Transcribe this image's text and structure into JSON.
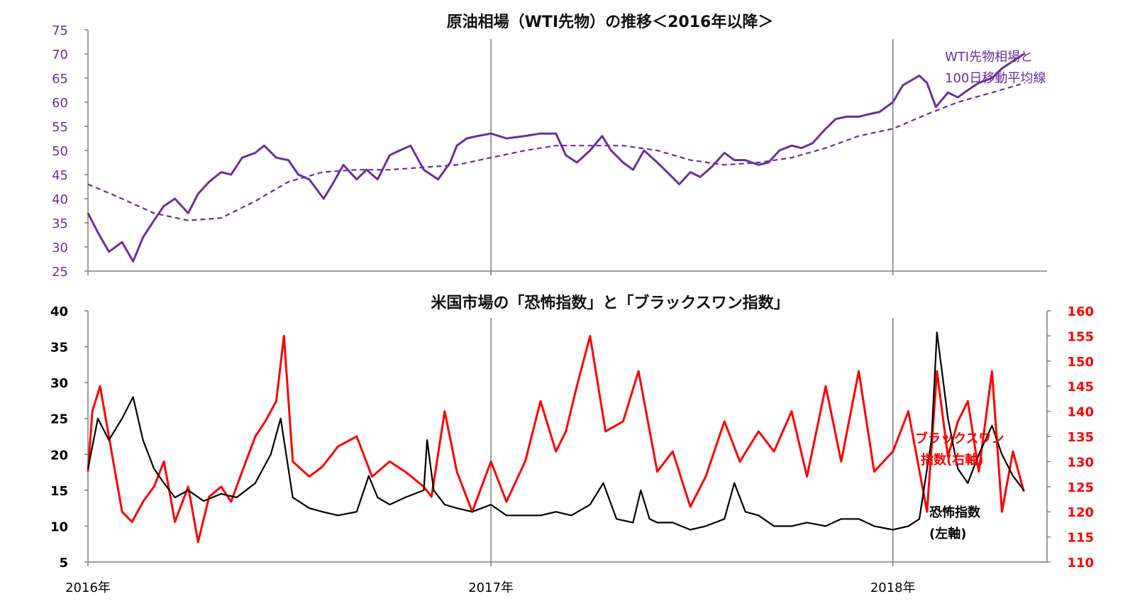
{
  "colors": {
    "wti": "#6B2FA0",
    "vix": "#000000",
    "skew": "#FF0000",
    "axis": "#7f7f7f",
    "grid": "#7f7f7f"
  },
  "chart_data": [
    {
      "type": "line",
      "title": "原油相場（WTI先物）の推移＜2016年以降＞",
      "ylim": [
        25,
        75
      ],
      "yticks": [
        "25",
        "30",
        "35",
        "40",
        "45",
        "50",
        "55",
        "60",
        "65",
        "70",
        "75"
      ],
      "x_range": [
        "2016-01-01",
        "2018-05-01"
      ],
      "legend": {
        "lines": [
          "WTI先物相場と",
          "100日移動平均線"
        ],
        "position": "right"
      },
      "series": [
        {
          "name": "WTI先物相場",
          "style": "solid",
          "x": [
            "2016-01-01",
            "2016-01-10",
            "2016-01-20",
            "2016-02-01",
            "2016-02-11",
            "2016-02-20",
            "2016-03-01",
            "2016-03-10",
            "2016-03-20",
            "2016-04-01",
            "2016-04-10",
            "2016-04-20",
            "2016-05-01",
            "2016-05-10",
            "2016-05-20",
            "2016-06-01",
            "2016-06-09",
            "2016-06-20",
            "2016-07-01",
            "2016-07-10",
            "2016-07-20",
            "2016-08-02",
            "2016-08-10",
            "2016-08-20",
            "2016-09-01",
            "2016-09-10",
            "2016-09-20",
            "2016-10-01",
            "2016-10-10",
            "2016-10-20",
            "2016-11-01",
            "2016-11-14",
            "2016-11-25",
            "2016-12-01",
            "2016-12-10",
            "2016-12-20",
            "2017-01-01",
            "2017-01-15",
            "2017-02-01",
            "2017-02-15",
            "2017-03-01",
            "2017-03-10",
            "2017-03-20",
            "2017-04-01",
            "2017-04-12",
            "2017-04-20",
            "2017-05-01",
            "2017-05-10",
            "2017-05-20",
            "2017-06-01",
            "2017-06-10",
            "2017-06-21",
            "2017-07-01",
            "2017-07-10",
            "2017-07-20",
            "2017-08-01",
            "2017-08-10",
            "2017-08-20",
            "2017-09-01",
            "2017-09-10",
            "2017-09-20",
            "2017-10-01",
            "2017-10-10",
            "2017-10-20",
            "2017-11-01",
            "2017-11-10",
            "2017-11-20",
            "2017-12-01",
            "2017-12-10",
            "2017-12-20",
            "2018-01-01",
            "2018-01-10",
            "2018-01-25",
            "2018-02-01",
            "2018-02-09",
            "2018-02-20",
            "2018-03-01",
            "2018-03-10",
            "2018-03-20",
            "2018-04-01",
            "2018-04-10",
            "2018-04-20",
            "2018-04-30"
          ],
          "y": [
            37.0,
            33.0,
            29.0,
            31.0,
            27.0,
            32.0,
            35.5,
            38.5,
            40.0,
            37.0,
            41.0,
            43.5,
            45.5,
            45.0,
            48.5,
            49.5,
            51.0,
            48.5,
            48.0,
            45.0,
            44.0,
            40.0,
            43.0,
            47.0,
            44.0,
            46.0,
            44.0,
            49.0,
            50.0,
            51.0,
            46.0,
            44.0,
            47.5,
            51.0,
            52.5,
            53.0,
            53.5,
            52.5,
            53.0,
            53.5,
            53.5,
            49.0,
            47.5,
            50.0,
            53.0,
            50.0,
            47.5,
            46.0,
            50.0,
            47.5,
            45.5,
            43.0,
            45.5,
            44.5,
            46.5,
            49.5,
            48.0,
            48.0,
            47.0,
            47.5,
            50.0,
            51.0,
            50.5,
            51.5,
            54.5,
            56.5,
            57.0,
            57.0,
            57.5,
            58.0,
            60.0,
            63.5,
            65.5,
            64.0,
            59.0,
            62.0,
            61.0,
            62.5,
            64.0,
            65.0,
            67.0,
            68.5,
            70.0
          ]
        },
        {
          "name": "100日移動平均線",
          "style": "dashed",
          "x": [
            "2016-01-01",
            "2016-02-01",
            "2016-03-01",
            "2016-04-01",
            "2016-05-01",
            "2016-06-01",
            "2016-07-01",
            "2016-08-01",
            "2016-09-01",
            "2016-10-01",
            "2016-11-01",
            "2016-12-01",
            "2017-01-01",
            "2017-02-01",
            "2017-03-01",
            "2017-04-01",
            "2017-05-01",
            "2017-06-01",
            "2017-07-01",
            "2017-08-01",
            "2017-09-01",
            "2017-10-01",
            "2017-11-01",
            "2017-12-01",
            "2018-01-01",
            "2018-02-01",
            "2018-03-01",
            "2018-04-01",
            "2018-05-01"
          ],
          "y": [
            43.0,
            40.0,
            37.0,
            35.5,
            36.0,
            39.5,
            43.5,
            45.5,
            46.0,
            46.0,
            46.5,
            47.0,
            48.5,
            50.0,
            51.0,
            51.0,
            51.0,
            50.0,
            48.0,
            47.0,
            47.5,
            48.5,
            50.5,
            53.0,
            54.5,
            57.5,
            60.0,
            62.0,
            64.0
          ]
        }
      ]
    },
    {
      "type": "line",
      "title": "米国市場の「恐怖指数」と「ブラックスワン指数」",
      "ylim": [
        5,
        40
      ],
      "y2lim": [
        110,
        160
      ],
      "yticks": [
        "5",
        "10",
        "15",
        "20",
        "25",
        "30",
        "35",
        "40"
      ],
      "y2ticks": [
        "110",
        "115",
        "120",
        "125",
        "130",
        "135",
        "140",
        "145",
        "150",
        "155",
        "160"
      ],
      "xticks": [
        "2016年",
        "2017年",
        "2018年"
      ],
      "x_range": [
        "2016-01-01",
        "2018-05-01"
      ],
      "series": [
        {
          "name": "ブラックスワン指数(右軸)",
          "axis": "right",
          "x": [
            "2016-01-01",
            "2016-01-05",
            "2016-01-12",
            "2016-01-20",
            "2016-02-01",
            "2016-02-10",
            "2016-02-20",
            "2016-03-01",
            "2016-03-10",
            "2016-03-20",
            "2016-04-01",
            "2016-04-10",
            "2016-04-20",
            "2016-05-01",
            "2016-05-10",
            "2016-05-20",
            "2016-06-01",
            "2016-06-10",
            "2016-06-20",
            "2016-06-27",
            "2016-07-05",
            "2016-07-20",
            "2016-08-01",
            "2016-08-15",
            "2016-09-01",
            "2016-09-15",
            "2016-10-01",
            "2016-10-15",
            "2016-11-01",
            "2016-11-08",
            "2016-11-20",
            "2016-12-01",
            "2016-12-15",
            "2017-01-01",
            "2017-01-15",
            "2017-02-01",
            "2017-02-15",
            "2017-03-01",
            "2017-03-10",
            "2017-03-20",
            "2017-04-01",
            "2017-04-15",
            "2017-05-01",
            "2017-05-15",
            "2017-06-01",
            "2017-06-15",
            "2017-07-01",
            "2017-07-15",
            "2017-08-01",
            "2017-08-15",
            "2017-09-01",
            "2017-09-15",
            "2017-10-01",
            "2017-10-15",
            "2017-11-01",
            "2017-11-15",
            "2017-12-01",
            "2017-12-15",
            "2018-01-01",
            "2018-01-15",
            "2018-02-01",
            "2018-02-10",
            "2018-02-20",
            "2018-03-01",
            "2018-03-10",
            "2018-03-20",
            "2018-04-01",
            "2018-04-10",
            "2018-04-20",
            "2018-04-30"
          ],
          "y": [
            128,
            140,
            145,
            135,
            120,
            118,
            122,
            125,
            130,
            118,
            125,
            114,
            123,
            125,
            122,
            128,
            135,
            138,
            142,
            155,
            130,
            127,
            129,
            133,
            135,
            127,
            130,
            128,
            125,
            123,
            140,
            128,
            120,
            130,
            122,
            130,
            142,
            132,
            136,
            145,
            155,
            136,
            138,
            148,
            128,
            132,
            121,
            127,
            138,
            130,
            136,
            132,
            140,
            127,
            145,
            130,
            148,
            128,
            132,
            140,
            120,
            148,
            131,
            138,
            142,
            128,
            148,
            120,
            132,
            124
          ]
        },
        {
          "name": "恐怖指数(左軸)",
          "axis": "left",
          "x": [
            "2016-01-01",
            "2016-01-10",
            "2016-01-20",
            "2016-02-01",
            "2016-02-11",
            "2016-02-20",
            "2016-03-01",
            "2016-03-10",
            "2016-03-20",
            "2016-04-01",
            "2016-04-15",
            "2016-05-01",
            "2016-05-15",
            "2016-06-01",
            "2016-06-15",
            "2016-06-24",
            "2016-07-05",
            "2016-07-20",
            "2016-08-01",
            "2016-08-15",
            "2016-09-01",
            "2016-09-12",
            "2016-09-20",
            "2016-10-01",
            "2016-10-15",
            "2016-11-01",
            "2016-11-04",
            "2016-11-10",
            "2016-11-20",
            "2016-12-01",
            "2016-12-15",
            "2017-01-01",
            "2017-01-15",
            "2017-02-01",
            "2017-02-15",
            "2017-03-01",
            "2017-03-15",
            "2017-04-01",
            "2017-04-13",
            "2017-04-25",
            "2017-05-10",
            "2017-05-17",
            "2017-05-25",
            "2017-06-01",
            "2017-06-15",
            "2017-07-01",
            "2017-07-15",
            "2017-08-01",
            "2017-08-10",
            "2017-08-20",
            "2017-09-01",
            "2017-09-15",
            "2017-10-01",
            "2017-10-15",
            "2017-11-01",
            "2017-11-15",
            "2017-12-01",
            "2017-12-15",
            "2018-01-01",
            "2018-01-15",
            "2018-01-25",
            "2018-02-05",
            "2018-02-10",
            "2018-02-20",
            "2018-03-01",
            "2018-03-10",
            "2018-03-20",
            "2018-04-01",
            "2018-04-10",
            "2018-04-20",
            "2018-04-30"
          ],
          "y": [
            18,
            25,
            22,
            25,
            28,
            22,
            18,
            16,
            14,
            15,
            13.5,
            14.5,
            14,
            16,
            20,
            25,
            14,
            12.5,
            12,
            11.5,
            12,
            17,
            14,
            13,
            14,
            15,
            22,
            15,
            13,
            12.5,
            12,
            13,
            11.5,
            11.5,
            11.5,
            12,
            11.5,
            13,
            16,
            11,
            10.5,
            15,
            11,
            10.5,
            10.5,
            9.5,
            10,
            11,
            16,
            12,
            11.5,
            10,
            10,
            10.5,
            10,
            11,
            11,
            10,
            9.5,
            10,
            11,
            22,
            37,
            25,
            18,
            16,
            20,
            24,
            20,
            17,
            15
          ]
        }
      ],
      "legends": [
        {
          "lines": [
            "ブラックスワン",
            "指数(右軸)"
          ],
          "color": "#FF0000"
        },
        {
          "lines": [
            "恐怖指数",
            "(左軸)"
          ],
          "color": "#000000"
        }
      ]
    }
  ]
}
